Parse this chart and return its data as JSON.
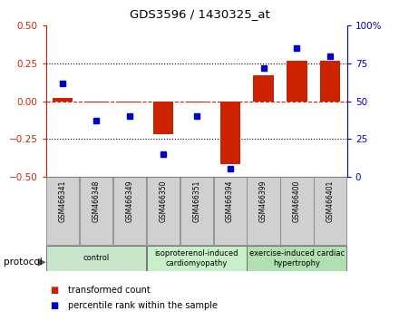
{
  "title": "GDS3596 / 1430325_at",
  "samples": [
    "GSM466341",
    "GSM466348",
    "GSM466349",
    "GSM466350",
    "GSM466351",
    "GSM466394",
    "GSM466399",
    "GSM466400",
    "GSM466401"
  ],
  "transformed_count": [
    0.02,
    -0.01,
    -0.01,
    -0.22,
    -0.01,
    -0.42,
    0.17,
    0.27,
    0.27
  ],
  "percentile_rank": [
    62,
    37,
    40,
    15,
    40,
    5,
    72,
    85,
    80
  ],
  "groups": [
    {
      "name": "control",
      "samples": [
        0,
        1,
        2
      ],
      "color": "#c8e6c9"
    },
    {
      "name": "isoproterenol-induced\ncardiomyopathy",
      "samples": [
        3,
        4,
        5
      ],
      "color": "#c8f0c8"
    },
    {
      "name": "exercise-induced cardiac\nhypertrophy",
      "samples": [
        6,
        7,
        8
      ],
      "color": "#b0e0b0"
    }
  ],
  "bar_color": "#cc2200",
  "dot_color": "#0000cc",
  "ylim_left": [
    -0.5,
    0.5
  ],
  "ylim_right": [
    0,
    100
  ],
  "yticks_left": [
    -0.5,
    -0.25,
    0.0,
    0.25,
    0.5
  ],
  "yticks_right": [
    0,
    25,
    50,
    75,
    100
  ],
  "hlines_dotted": [
    -0.25,
    0.25
  ],
  "hline_zero": 0.0,
  "bar_width": 0.6,
  "protocol_label": "protocol",
  "legend_items": [
    {
      "label": "transformed count",
      "color": "#cc2200"
    },
    {
      "label": "percentile rank within the sample",
      "color": "#0000cc"
    }
  ],
  "sample_box_color": "#d0d0d0",
  "sample_box_edge": "#888888"
}
